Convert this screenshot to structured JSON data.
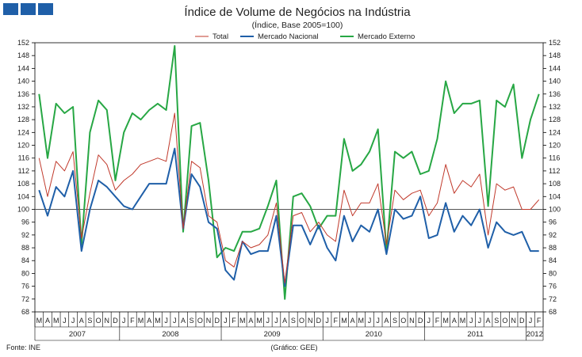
{
  "logo": {
    "icon": "brand-squares-icon",
    "color": "#1f5fa8"
  },
  "chart_data": {
    "type": "line",
    "title": "Índice de Volume de Negócios na Indústria",
    "subtitle": "(Índice, Base 2005=100)",
    "source": "Fonte: INE",
    "credit": "(Gráfico: GEE)",
    "ylim": [
      68,
      152
    ],
    "yticks": [
      68,
      72,
      76,
      80,
      84,
      88,
      92,
      96,
      100,
      104,
      108,
      112,
      116,
      120,
      124,
      128,
      132,
      136,
      140,
      144,
      148,
      152
    ],
    "reference_line": 100,
    "months": [
      "M",
      "A",
      "M",
      "J",
      "J",
      "A",
      "S",
      "O",
      "N",
      "D",
      "J",
      "F",
      "M",
      "A",
      "M",
      "J",
      "J",
      "A",
      "S",
      "O",
      "N",
      "D",
      "J",
      "F",
      "M",
      "A",
      "M",
      "J",
      "J",
      "A",
      "S",
      "O",
      "N",
      "D",
      "J",
      "F",
      "M",
      "A",
      "M",
      "J",
      "J",
      "A",
      "S",
      "O",
      "N",
      "D",
      "J",
      "F",
      "M",
      "A",
      "M",
      "J",
      "J",
      "A",
      "S",
      "O",
      "N",
      "D",
      "J",
      "F"
    ],
    "years": [
      {
        "label": "2007",
        "start": 0,
        "end": 10
      },
      {
        "label": "2008",
        "start": 10,
        "end": 22
      },
      {
        "label": "2009",
        "start": 22,
        "end": 34
      },
      {
        "label": "2010",
        "start": 34,
        "end": 46
      },
      {
        "label": "2011",
        "start": 46,
        "end": 58
      },
      {
        "label": "2012",
        "start": 58,
        "end": 60
      }
    ],
    "series": [
      {
        "name": "Total",
        "color": "#c0392b",
        "width": 1,
        "values": [
          116,
          104,
          115,
          112,
          118,
          91,
          105,
          117,
          114,
          106,
          109,
          111,
          114,
          115,
          116,
          115,
          130,
          94,
          115,
          113,
          98,
          96,
          84,
          82,
          90,
          88,
          89,
          92,
          102,
          77,
          98,
          99,
          93,
          96,
          92,
          90,
          106,
          98,
          102,
          102,
          108,
          89,
          106,
          103,
          105,
          106,
          98,
          102,
          114,
          105,
          109,
          107,
          111,
          92,
          108,
          106,
          107,
          100,
          100,
          103
        ]
      },
      {
        "name": "Mercado Nacional",
        "color": "#1f5fa8",
        "width": 2,
        "values": [
          106,
          98,
          107,
          104,
          112,
          87,
          100,
          109,
          107,
          104,
          101,
          100,
          104,
          108,
          108,
          108,
          119,
          94,
          111,
          107,
          96,
          94,
          81,
          78,
          90,
          86,
          87,
          87,
          98,
          76,
          95,
          95,
          89,
          95,
          88,
          84,
          98,
          90,
          95,
          93,
          100,
          86,
          100,
          97,
          98,
          104,
          91,
          92,
          102,
          93,
          98,
          95,
          100,
          88,
          96,
          93,
          92,
          93,
          87,
          87
        ]
      },
      {
        "name": "Mercado Externo",
        "color": "#27a744",
        "width": 2,
        "values": [
          136,
          116,
          133,
          130,
          132,
          89,
          124,
          134,
          131,
          109,
          124,
          130,
          128,
          131,
          133,
          131,
          151,
          93,
          126,
          127,
          109,
          85,
          88,
          87,
          93,
          93,
          94,
          101,
          109,
          72,
          104,
          105,
          101,
          94,
          98,
          98,
          122,
          112,
          114,
          118,
          125,
          87,
          118,
          116,
          118,
          111,
          112,
          122,
          140,
          130,
          133,
          133,
          134,
          101,
          134,
          132,
          139,
          116,
          128,
          136
        ]
      }
    ]
  }
}
